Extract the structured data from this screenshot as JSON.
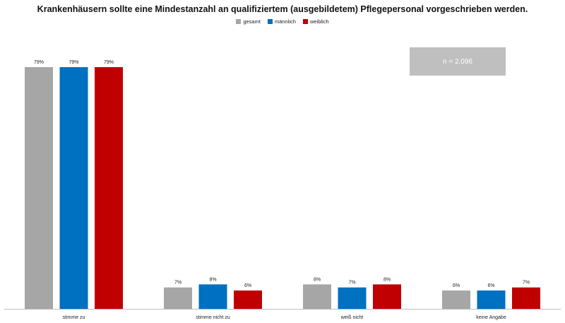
{
  "chart_data": {
    "type": "bar",
    "title": "Krankenhäusern sollte eine Mindestanzahl an qualifiziertem (ausgebildetem) Pflegepersonal vorgeschrieben werden.",
    "categories": [
      "stimme zu",
      "stimme nicht zu",
      "weiß nicht",
      "keine Angabe"
    ],
    "series": [
      {
        "name": "gesamt",
        "color": "#a6a6a6",
        "values": [
          79,
          7,
          8,
          6
        ],
        "labels": [
          "79%",
          "7%",
          "8%",
          "6%"
        ]
      },
      {
        "name": "männlich",
        "color": "#0070c0",
        "values": [
          79,
          8,
          7,
          6
        ],
        "labels": [
          "79%",
          "8%",
          "7%",
          "6%"
        ]
      },
      {
        "name": "weiblich",
        "color": "#c00000",
        "values": [
          79,
          6,
          8,
          7
        ],
        "labels": [
          "79%",
          "6%",
          "8%",
          "7%"
        ]
      }
    ],
    "ylim": [
      0,
      100
    ],
    "grid": false,
    "legend_position": "top-center",
    "annotation": "n = 2.096"
  }
}
